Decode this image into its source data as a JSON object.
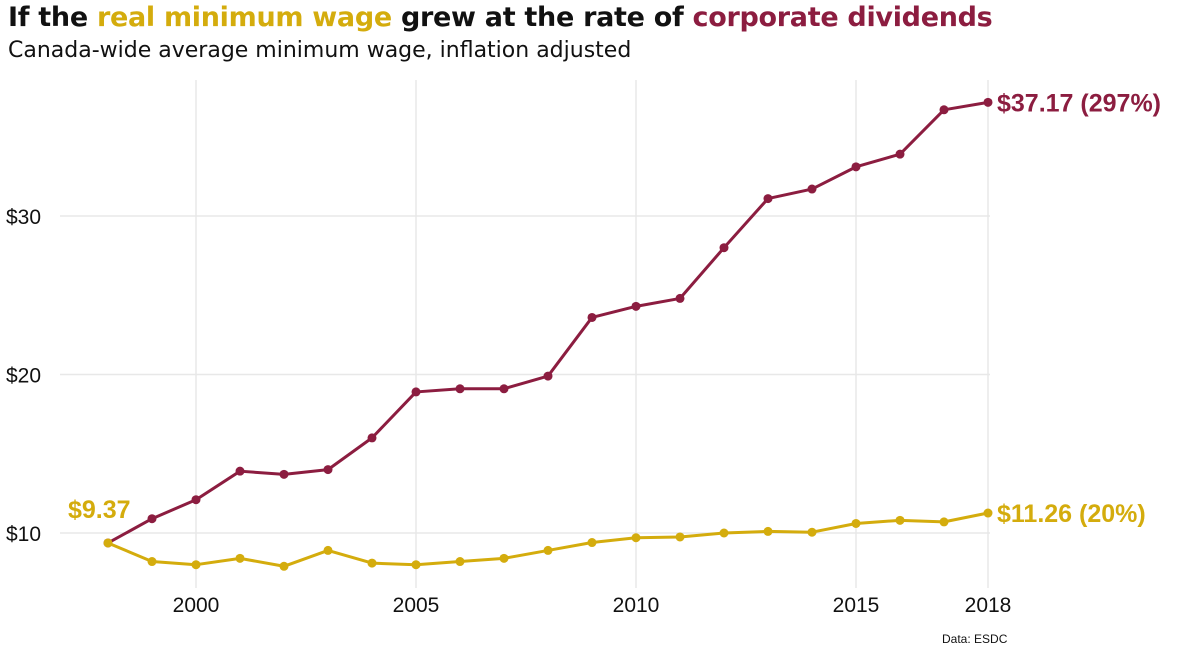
{
  "chart_data": {
    "type": "line",
    "title_parts": [
      "If the ",
      "real minimum wage",
      " grew at the rate of ",
      "corporate dividends"
    ],
    "subtitle": "Canada-wide average minimum wage, inflation adjusted",
    "source": "Data: ESDC",
    "x": [
      1998,
      1999,
      2000,
      2001,
      2002,
      2003,
      2004,
      2005,
      2006,
      2007,
      2008,
      2009,
      2010,
      2011,
      2012,
      2013,
      2014,
      2015,
      2016,
      2017,
      2018
    ],
    "series": [
      {
        "name": "corporate dividends",
        "color": "#8c1d40",
        "values": [
          9.37,
          10.9,
          12.1,
          13.9,
          13.7,
          14.0,
          16.0,
          18.9,
          19.1,
          19.1,
          19.9,
          23.6,
          24.3,
          24.8,
          28.0,
          31.1,
          31.7,
          33.1,
          33.9,
          36.7,
          37.17
        ],
        "end_label": "$37.17 (297%)"
      },
      {
        "name": "real minimum wage",
        "color": "#d4ac0d",
        "values": [
          9.37,
          8.2,
          8.0,
          8.4,
          7.9,
          8.9,
          8.1,
          8.0,
          8.2,
          8.4,
          8.9,
          9.4,
          9.7,
          9.75,
          10.0,
          10.1,
          10.05,
          10.6,
          10.8,
          10.7,
          11.26
        ],
        "end_label": "$11.26 (20%)",
        "start_label": "$9.37"
      }
    ],
    "x_ticks": [
      2000,
      2005,
      2010,
      2015,
      2018
    ],
    "y_ticks": [
      10,
      20,
      30
    ],
    "y_tick_labels": [
      "$10",
      "$20",
      "$30"
    ],
    "xlim": [
      1998,
      2018
    ],
    "ylim": [
      7.5,
      37.5
    ],
    "grid": true
  }
}
